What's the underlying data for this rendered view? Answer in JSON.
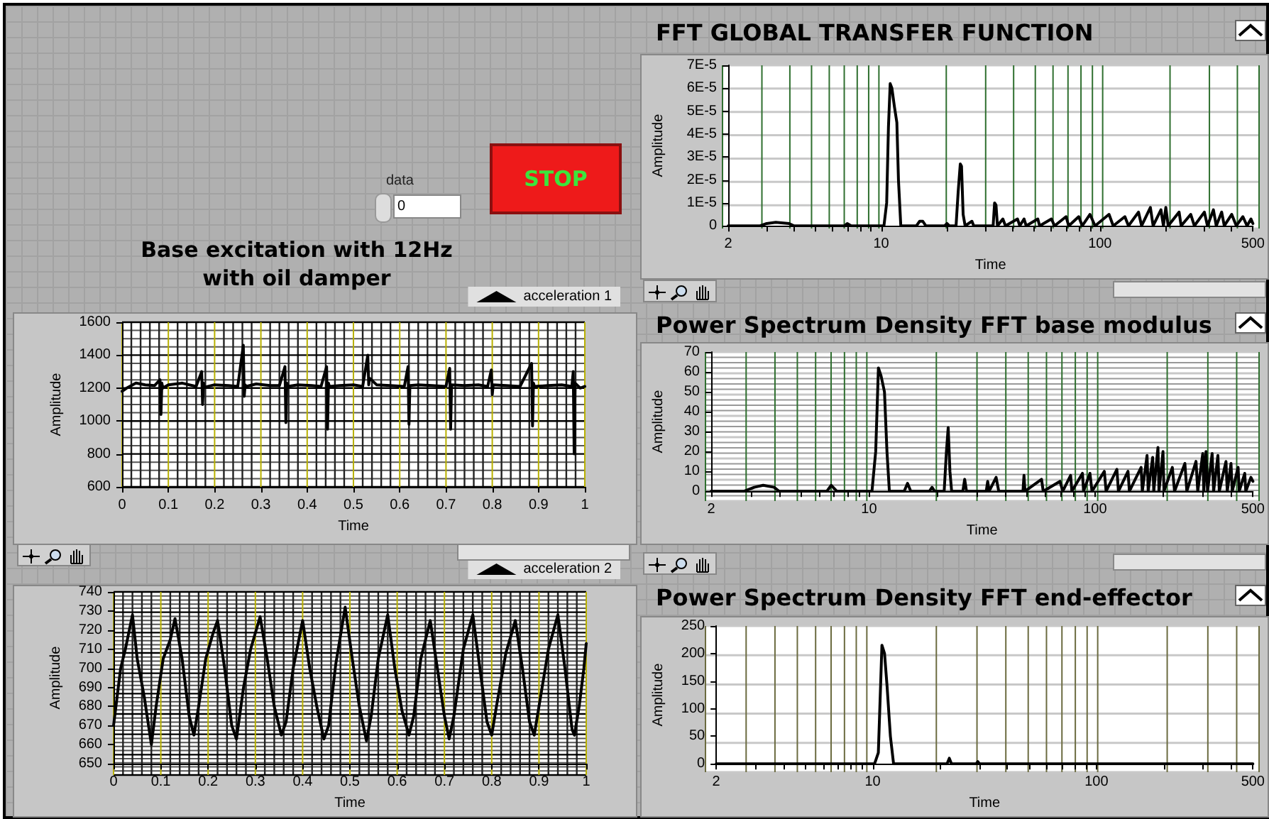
{
  "chart_data": [
    {
      "type": "other",
      "title": "Base excitation with 12Hz with oil damper",
      "annotations": [
        "data",
        "0",
        "STOP"
      ]
    },
    {
      "type": "line",
      "title": "FFT GLOBAL TRANSFER FUNCTION",
      "xlabel": "Time",
      "ylabel": "Amplitude",
      "log": "x",
      "grid": true,
      "xlim": [
        2,
        500
      ],
      "xticks": [
        2,
        {
          "value": 3,
          "label": null
        },
        {
          "value": 4,
          "label": null
        },
        {
          "value": 5,
          "label": null
        },
        {
          "value": 6,
          "label": null
        },
        {
          "value": 7,
          "label": null
        },
        {
          "value": 8,
          "label": null
        },
        {
          "value": 9,
          "label": null
        },
        10,
        {
          "value": 20,
          "label": null
        },
        {
          "value": 30,
          "label": null
        },
        {
          "value": 40,
          "label": null
        },
        {
          "value": 50,
          "label": null
        },
        {
          "value": 60,
          "label": null
        },
        {
          "value": 70,
          "label": null
        },
        {
          "value": 80,
          "label": null
        },
        {
          "value": 90,
          "label": null
        },
        100,
        {
          "value": 200,
          "label": null
        },
        {
          "value": 300,
          "label": null
        },
        {
          "value": 400,
          "label": null
        },
        500
      ],
      "ylim": [
        0,
        7e-05
      ],
      "yticks": [
        0,
        {
          "value": 1e-05,
          "label": "1E-5"
        },
        {
          "value": 2e-05,
          "label": "2E-5"
        },
        {
          "value": 3e-05,
          "label": "3E-5"
        },
        {
          "value": 4e-05,
          "label": "4E-5"
        },
        {
          "value": 5e-05,
          "label": "5E-5"
        },
        {
          "value": 6e-05,
          "label": "6E-5"
        },
        {
          "value": 7e-05,
          "label": "7E-5"
        }
      ],
      "series": [
        {
          "color": "#000000",
          "x": [
            2,
            2.8,
            3,
            3.3,
            3.8,
            4,
            6.8,
            7,
            7.3,
            10.3,
            10.6,
            10.8,
            11,
            11.2,
            11.5,
            11.8,
            12,
            12.3,
            14.5,
            15,
            15.5,
            16,
            19.5,
            20,
            20.5,
            22,
            22.5,
            23,
            23.3,
            23.7,
            24.2,
            26,
            26.5,
            32.5,
            33,
            33.5,
            34,
            36,
            37,
            42,
            43,
            45,
            46,
            52,
            53,
            60,
            62,
            70,
            72,
            80,
            83,
            90,
            95,
            110,
            115,
            130,
            135,
            150,
            155,
            170,
            175,
            190,
            195,
            200,
            205,
            230,
            235,
            260,
            270,
            300,
            310,
            330,
            340,
            360,
            370,
            400,
            420,
            450,
            470,
            490,
            500
          ],
          "values": [
            0,
            0,
            1e-06,
            1.5e-06,
            1e-06,
            0,
            0,
            1e-06,
            0,
            0,
            1e-05,
            4.3e-05,
            6.2e-05,
            6e-05,
            5.2e-05,
            4.5e-05,
            2e-05,
            0,
            0,
            2e-06,
            2e-06,
            0,
            0,
            1e-06,
            0,
            0,
            1.5e-05,
            2.7e-05,
            2.6e-05,
            5e-06,
            0,
            2e-06,
            0,
            0,
            1e-05,
            9e-06,
            0,
            3e-06,
            0,
            3e-06,
            0,
            3e-06,
            0,
            3e-06,
            0,
            3e-06,
            0,
            4e-06,
            0,
            4e-06,
            0,
            5e-06,
            0,
            5e-06,
            0,
            4e-06,
            0,
            6e-06,
            0,
            8e-06,
            0,
            7e-06,
            0,
            8e-06,
            0,
            6e-06,
            0,
            5e-06,
            0,
            6e-06,
            0,
            7e-06,
            0,
            6e-06,
            0,
            5e-06,
            0,
            4e-06,
            0,
            3e-06,
            1e-06
          ]
        }
      ]
    },
    {
      "type": "line",
      "xlabel": "Time",
      "ylabel": "Amplitude",
      "grid": true,
      "legend": "top right",
      "xlim": [
        0,
        1
      ],
      "xticks": [
        0,
        0.1,
        0.2,
        0.3,
        0.4,
        0.5,
        0.6,
        0.7,
        0.8,
        0.9,
        1
      ],
      "ylim": [
        600,
        1600
      ],
      "yticks": [
        600,
        800,
        1000,
        1200,
        1400,
        1600
      ],
      "series": [
        {
          "name": "acceleration 1",
          "color": "#000000",
          "x": [
            0,
            0.01,
            0.03,
            0.05,
            0.07,
            0.082,
            0.084,
            0.086,
            0.088,
            0.1,
            0.13,
            0.16,
            0.172,
            0.174,
            0.176,
            0.178,
            0.2,
            0.23,
            0.25,
            0.262,
            0.264,
            0.266,
            0.268,
            0.29,
            0.32,
            0.34,
            0.352,
            0.354,
            0.356,
            0.358,
            0.38,
            0.41,
            0.43,
            0.442,
            0.444,
            0.446,
            0.448,
            0.47,
            0.5,
            0.52,
            0.531,
            0.533,
            0.535,
            0.55,
            0.58,
            0.61,
            0.618,
            0.62,
            0.622,
            0.64,
            0.67,
            0.7,
            0.708,
            0.71,
            0.712,
            0.74,
            0.77,
            0.79,
            0.798,
            0.8,
            0.802,
            0.83,
            0.86,
            0.885,
            0.887,
            0.889,
            0.891,
            0.92,
            0.95,
            0.972,
            0.975,
            0.977,
            0.979,
            0.99,
            1
          ],
          "values": [
            1180,
            1200,
            1230,
            1220,
            1215,
            1250,
            1040,
            1230,
            1200,
            1220,
            1230,
            1210,
            1300,
            1100,
            1230,
            1205,
            1220,
            1215,
            1210,
            1460,
            1150,
            1220,
            1210,
            1225,
            1215,
            1215,
            1330,
            990,
            1230,
            1210,
            1220,
            1215,
            1210,
            1330,
            950,
            1230,
            1210,
            1215,
            1220,
            1210,
            1400,
            1220,
            1260,
            1220,
            1215,
            1210,
            1330,
            980,
            1215,
            1220,
            1215,
            1210,
            1320,
            950,
            1220,
            1215,
            1220,
            1210,
            1310,
            1160,
            1220,
            1215,
            1210,
            1350,
            970,
            1230,
            1210,
            1215,
            1220,
            1210,
            1300,
            800,
            1230,
            1200,
            1210
          ]
        }
      ]
    },
    {
      "type": "line",
      "title": "Power Spectrum Density FFT base modulus",
      "xlabel": "Time",
      "ylabel": "Amplitude",
      "log": "x",
      "grid": true,
      "xlim": [
        2,
        500
      ],
      "xticks": [
        2,
        {
          "value": 3,
          "label": null
        },
        {
          "value": 4,
          "label": null
        },
        {
          "value": 5,
          "label": null
        },
        {
          "value": 6,
          "label": null
        },
        {
          "value": 7,
          "label": null
        },
        {
          "value": 8,
          "label": null
        },
        {
          "value": 9,
          "label": null
        },
        10,
        {
          "value": 20,
          "label": null
        },
        {
          "value": 30,
          "label": null
        },
        {
          "value": 40,
          "label": null
        },
        {
          "value": 50,
          "label": null
        },
        {
          "value": 60,
          "label": null
        },
        {
          "value": 70,
          "label": null
        },
        {
          "value": 80,
          "label": null
        },
        {
          "value": 90,
          "label": null
        },
        100,
        {
          "value": 200,
          "label": null
        },
        {
          "value": 300,
          "label": null
        },
        {
          "value": 400,
          "label": null
        },
        500
      ],
      "ylim": [
        0,
        70
      ],
      "yticks": [
        0,
        10,
        20,
        30,
        40,
        50,
        60,
        70
      ],
      "series": [
        {
          "color": "#000000",
          "x": [
            2,
            2.8,
            3.1,
            3.4,
            3.8,
            4,
            6.5,
            6.8,
            7.2,
            10.3,
            10.7,
            11,
            11.3,
            11.7,
            12,
            12.3,
            14.3,
            14.8,
            15.3,
            18.5,
            19,
            19.5,
            21.5,
            22,
            22.4,
            22.8,
            23.2,
            26,
            26.5,
            27,
            33,
            33.5,
            34,
            36.5,
            37.5,
            48,
            48.5,
            49,
            58,
            59,
            70,
            72,
            78,
            79,
            88,
            89,
            95,
            97,
            110,
            112,
            125,
            127,
            140,
            142,
            160,
            162,
            170,
            172,
            180,
            182,
            190,
            192,
            200,
            202,
            220,
            225,
            250,
            255,
            280,
            285,
            300,
            303,
            310,
            315,
            330,
            335,
            350,
            355,
            380,
            385,
            400,
            405,
            430,
            435,
            460,
            465,
            490,
            500
          ],
          "values": [
            0,
            0,
            2,
            3,
            2,
            0,
            0,
            3,
            0,
            0,
            20,
            62,
            58,
            50,
            20,
            0,
            0,
            4,
            0,
            0,
            2,
            0,
            0,
            20,
            32,
            10,
            0,
            0,
            6,
            0,
            0,
            5,
            0,
            7,
            0,
            0,
            8,
            0,
            6,
            0,
            5,
            0,
            8,
            0,
            9,
            0,
            9,
            0,
            10,
            0,
            11,
            0,
            10,
            0,
            12,
            0,
            18,
            0,
            17,
            0,
            22,
            0,
            20,
            0,
            12,
            0,
            14,
            0,
            15,
            0,
            19,
            0,
            20,
            0,
            19,
            0,
            18,
            0,
            15,
            0,
            14,
            0,
            12,
            0,
            9,
            0,
            7,
            5
          ]
        }
      ]
    },
    {
      "type": "line",
      "xlabel": "Time",
      "ylabel": "Amplitude",
      "grid": true,
      "legend": "top right",
      "xlim": [
        0,
        1
      ],
      "xticks": [
        0,
        0.1,
        0.2,
        0.3,
        0.4,
        0.5,
        0.6,
        0.7,
        0.8,
        0.9,
        1
      ],
      "ylim": [
        650,
        740
      ],
      "yticks": [
        650,
        660,
        670,
        680,
        690,
        700,
        710,
        720,
        730,
        740
      ],
      "series": [
        {
          "name": "acceleration 2",
          "color": "#000000",
          "x": [
            0,
            0.005,
            0.015,
            0.025,
            0.04,
            0.05,
            0.065,
            0.08,
            0.09,
            0.105,
            0.12,
            0.13,
            0.145,
            0.16,
            0.17,
            0.18,
            0.195,
            0.21,
            0.22,
            0.235,
            0.25,
            0.26,
            0.275,
            0.29,
            0.31,
            0.325,
            0.34,
            0.355,
            0.365,
            0.38,
            0.4,
            0.415,
            0.43,
            0.445,
            0.455,
            0.47,
            0.49,
            0.505,
            0.52,
            0.535,
            0.545,
            0.56,
            0.58,
            0.595,
            0.61,
            0.625,
            0.635,
            0.65,
            0.67,
            0.685,
            0.7,
            0.71,
            0.72,
            0.74,
            0.76,
            0.775,
            0.79,
            0.8,
            0.81,
            0.83,
            0.85,
            0.865,
            0.88,
            0.89,
            0.9,
            0.92,
            0.94,
            0.955,
            0.97,
            0.975,
            0.985,
            0.995,
            1
          ],
          "values": [
            670,
            680,
            700,
            710,
            728,
            705,
            685,
            660,
            680,
            705,
            715,
            726,
            705,
            675,
            665,
            680,
            705,
            718,
            725,
            700,
            670,
            663,
            690,
            710,
            727,
            705,
            680,
            665,
            672,
            700,
            725,
            700,
            680,
            663,
            670,
            702,
            732,
            705,
            680,
            662,
            675,
            705,
            728,
            700,
            678,
            665,
            675,
            705,
            725,
            700,
            675,
            663,
            675,
            710,
            728,
            700,
            672,
            665,
            680,
            708,
            725,
            700,
            672,
            665,
            680,
            710,
            728,
            700,
            668,
            665,
            680,
            700,
            713
          ]
        }
      ]
    },
    {
      "type": "line",
      "title": "Power Spectrum Density FFT end-effector",
      "xlabel": "Time",
      "ylabel": "Amplitude",
      "log": "x",
      "grid": true,
      "xlim": [
        2,
        500
      ],
      "xticks": [
        2,
        {
          "value": 3,
          "label": null
        },
        {
          "value": 4,
          "label": null
        },
        {
          "value": 5,
          "label": null
        },
        {
          "value": 6,
          "label": null
        },
        {
          "value": 7,
          "label": null
        },
        {
          "value": 8,
          "label": null
        },
        {
          "value": 9,
          "label": null
        },
        10,
        {
          "value": 20,
          "label": null
        },
        {
          "value": 30,
          "label": null
        },
        {
          "value": 40,
          "label": null
        },
        {
          "value": 50,
          "label": null
        },
        {
          "value": 60,
          "label": null
        },
        {
          "value": 70,
          "label": null
        },
        {
          "value": 80,
          "label": null
        },
        {
          "value": 90,
          "label": null
        },
        100,
        {
          "value": 200,
          "label": null
        },
        {
          "value": 300,
          "label": null
        },
        {
          "value": 400,
          "label": null
        },
        500
      ],
      "ylim": [
        0,
        250
      ],
      "yticks": [
        0,
        50,
        100,
        150,
        200,
        250
      ],
      "series": [
        {
          "color": "#000000",
          "x": [
            2,
            10.2,
            10.6,
            11,
            11.3,
            11.6,
            12,
            12.4,
            21.5,
            22,
            22.5,
            29,
            29.5,
            30,
            500
          ],
          "values": [
            0,
            0,
            20,
            215,
            200,
            140,
            50,
            0,
            0,
            10,
            0,
            0,
            4,
            0,
            0
          ]
        }
      ]
    }
  ]
}
